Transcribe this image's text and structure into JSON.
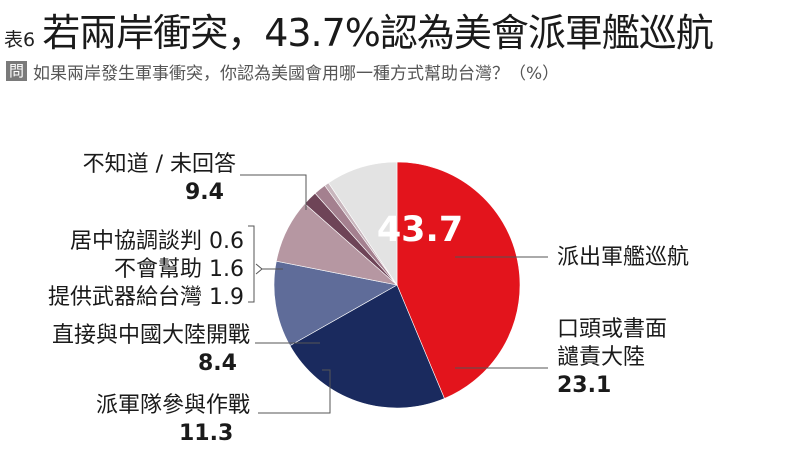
{
  "header": {
    "table_no": "表6",
    "title": "若兩岸衝突，43.7%認為美會派軍艦巡航",
    "question_badge": "問",
    "question": "如果兩岸發生軍事衝突，你認為美國會用哪一種方式幫助台灣？（%）"
  },
  "chart_data": {
    "type": "pie",
    "title": "若兩岸衝突，43.7%認為美會派軍艦巡航",
    "unit": "%",
    "slices": [
      {
        "label": "派出軍艦巡航",
        "value": 43.7,
        "color": "#e3141c"
      },
      {
        "label": "口頭或書面譴責大陸",
        "value": 23.1,
        "color": "#1a2a5e"
      },
      {
        "label": "派軍隊參與作戰",
        "value": 11.3,
        "color": "#5f6c99"
      },
      {
        "label": "直接與中國大陸開戰",
        "value": 8.4,
        "color": "#b697a2"
      },
      {
        "label": "提供武器給台灣",
        "value": 1.9,
        "color": "#6e4457"
      },
      {
        "label": "不會幫助",
        "value": 1.6,
        "color": "#a4808f"
      },
      {
        "label": "居中協調談判",
        "value": 0.6,
        "color": "#c8b6bd"
      },
      {
        "label": "不知道／未回答",
        "value": 9.4,
        "color": "#e3e3e3"
      }
    ],
    "labels": {
      "red_label": "派出軍艦巡航",
      "red_value": "43.7",
      "navy_label_1": "口頭或書面",
      "navy_label_2": "譴責大陸",
      "navy_value": "23.1",
      "blue_label": "派軍隊參與作戰",
      "blue_value": "11.3",
      "pink_label": "直接與中國大陸開戰",
      "pink_value": "8.4",
      "small_1": "居中協調談判 0.6",
      "small_2": "不會幫助 1.6",
      "small_3": "提供武器給台灣 1.9",
      "gray_label": "不知道 / 未回答",
      "gray_value": "9.4"
    }
  }
}
